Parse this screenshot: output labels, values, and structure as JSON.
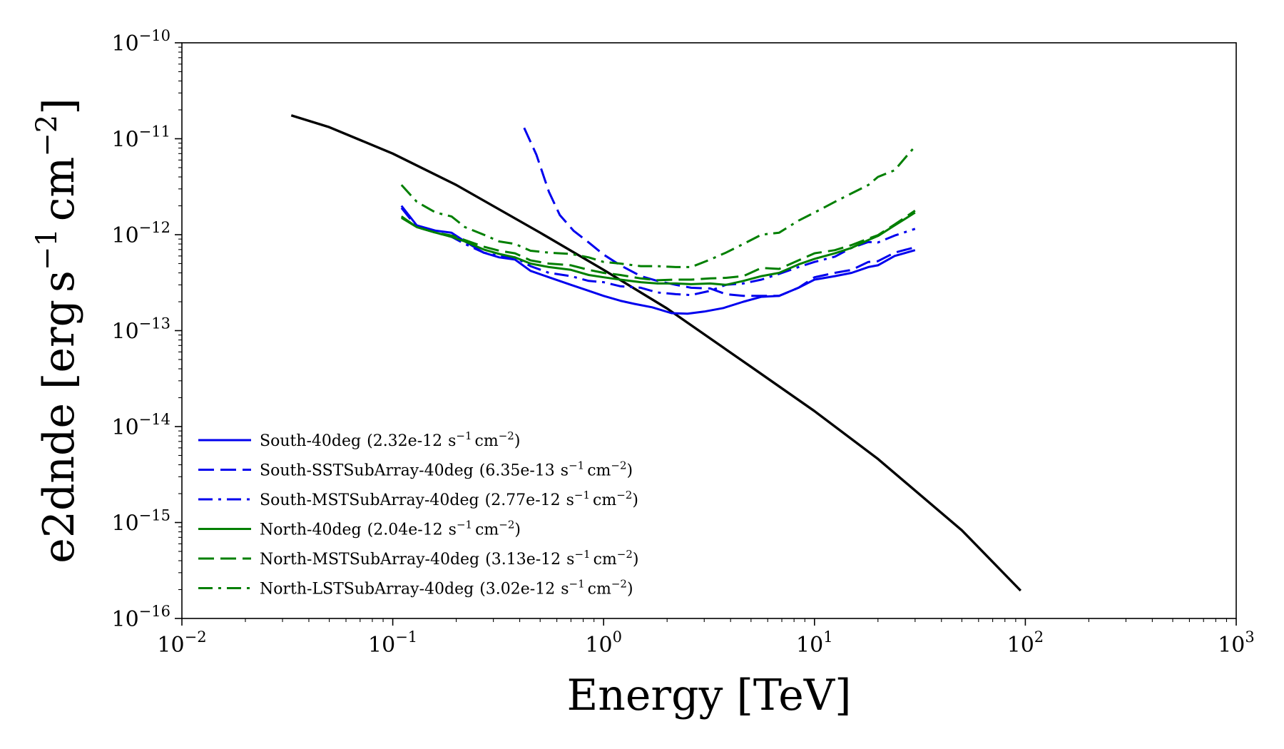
{
  "chart_data": {
    "type": "line",
    "xlabel": "Energy [TeV]",
    "ylabel": "e2dnde [erg s⁻¹ cm⁻²]",
    "ylabel_parts": {
      "main": "e2dnde [erg",
      "s": "s",
      "sexp": "−1",
      "cm": "cm",
      "cmexp": "−2",
      "close": "]"
    },
    "xlabel_text": "Energy [TeV]",
    "x_scale": "log",
    "y_scale": "log",
    "xlim": [
      0.01,
      1000
    ],
    "ylim": [
      1e-16,
      1e-10
    ],
    "x_ticks": [
      {
        "base": "10",
        "exp": "−2"
      },
      {
        "base": "10",
        "exp": "−1"
      },
      {
        "base": "10",
        "exp": "0"
      },
      {
        "base": "10",
        "exp": "1"
      },
      {
        "base": "10",
        "exp": "2"
      },
      {
        "base": "10",
        "exp": "3"
      }
    ],
    "y_ticks": [
      {
        "base": "10",
        "exp": "−16"
      },
      {
        "base": "10",
        "exp": "−15"
      },
      {
        "base": "10",
        "exp": "−14"
      },
      {
        "base": "10",
        "exp": "−13"
      },
      {
        "base": "10",
        "exp": "−12"
      },
      {
        "base": "10",
        "exp": "−11"
      },
      {
        "base": "10",
        "exp": "−10"
      }
    ],
    "legend_position": "lower-left",
    "grid": false,
    "legend_unit": {
      "s": "s",
      "sexp": "−1",
      "cm": "cm",
      "cmexp": "−2"
    },
    "reference_curve": {
      "color": "#000000",
      "style": "solid",
      "x": [
        0.033,
        0.05,
        0.1,
        0.2,
        0.5,
        1,
        2,
        5,
        10,
        20,
        50,
        95
      ],
      "y": [
        1.75e-11,
        1.32e-11,
        7e-12,
        3.3e-12,
        1.05e-12,
        4.3e-13,
        1.7e-13,
        4.2e-14,
        1.45e-14,
        4.6e-15,
        8.3e-16,
        1.95e-16
      ]
    },
    "series": [
      {
        "name": "South-40deg",
        "integral": "(2.32e-12",
        "color": "#0000ee",
        "style": "solid",
        "x": [
          0.11,
          0.13,
          0.16,
          0.19,
          0.22,
          0.27,
          0.32,
          0.38,
          0.45,
          0.55,
          0.7,
          0.85,
          1.0,
          1.2,
          1.4,
          1.7,
          2.1,
          2.5,
          3.0,
          3.7,
          4.6,
          5.6,
          6.8,
          8.4,
          10.0,
          12.5,
          15.0,
          18.0,
          20.0,
          24.0,
          30.0
        ],
        "y": [
          2e-12,
          1.25e-12,
          1.1e-12,
          1.05e-12,
          8.5e-13,
          6.5e-13,
          5.8e-13,
          5.5e-13,
          4.2e-13,
          3.6e-13,
          3e-13,
          2.6e-13,
          2.3e-13,
          2.05e-13,
          1.9e-13,
          1.75e-13,
          1.52e-13,
          1.5e-13,
          1.58e-13,
          1.72e-13,
          2e-13,
          2.25e-13,
          2.3e-13,
          2.8e-13,
          3.4e-13,
          3.7e-13,
          4e-13,
          4.6e-13,
          4.8e-13,
          6e-13,
          6.9e-13
        ]
      },
      {
        "name": "South-SSTSubArray-40deg",
        "integral": "(6.35e-13",
        "color": "#0000ee",
        "style": "dashed",
        "x": [
          0.42,
          0.48,
          0.55,
          0.62,
          0.72,
          0.85,
          1.0,
          1.2,
          1.5,
          1.8,
          2.2,
          2.6,
          3.2,
          3.8,
          4.6,
          5.6,
          6.8,
          8.4,
          10.0,
          12.5,
          15.0,
          18.0,
          20.0,
          24.0,
          30.0
        ],
        "y": [
          1.3e-11,
          6.8e-12,
          2.8e-12,
          1.6e-12,
          1.1e-12,
          8.3e-13,
          6.2e-13,
          4.8e-13,
          3.7e-13,
          3.3e-13,
          3e-13,
          2.8e-13,
          2.75e-13,
          2.4e-13,
          2.3e-13,
          2.3e-13,
          2.3e-13,
          2.8e-13,
          3.6e-13,
          4e-13,
          4.3e-13,
          5.2e-13,
          5.3e-13,
          6.5e-13,
          7.4e-13
        ]
      },
      {
        "name": "South-MSTSubArray-40deg",
        "integral": "(2.77e-12",
        "color": "#0000ee",
        "style": "dashdot",
        "x": [
          0.11,
          0.13,
          0.16,
          0.19,
          0.22,
          0.27,
          0.32,
          0.38,
          0.45,
          0.55,
          0.7,
          0.85,
          1.0,
          1.2,
          1.5,
          1.8,
          2.2,
          2.6,
          3.2,
          3.8,
          4.6,
          5.6,
          6.8,
          8.4,
          10.0,
          12.5,
          15.0,
          18.0,
          20.0,
          24.0,
          30.0
        ],
        "y": [
          1.9e-12,
          1.2e-12,
          1.05e-12,
          9.5e-13,
          8e-13,
          6.5e-13,
          6e-13,
          5.8e-13,
          4.7e-13,
          4e-13,
          3.7e-13,
          3.3e-13,
          3.2e-13,
          2.9e-13,
          2.8e-13,
          2.5e-13,
          2.4e-13,
          2.35e-13,
          2.6e-13,
          3e-13,
          3.1e-13,
          3.4e-13,
          3.9e-13,
          4.6e-13,
          5.2e-13,
          5.9e-13,
          7.3e-13,
          8.4e-13,
          8.3e-13,
          9.8e-13,
          1.15e-12
        ]
      },
      {
        "name": "North-40deg",
        "integral": "(2.04e-12",
        "color": "#007f00",
        "style": "solid",
        "x": [
          0.11,
          0.13,
          0.16,
          0.19,
          0.22,
          0.27,
          0.32,
          0.38,
          0.45,
          0.55,
          0.7,
          0.85,
          1.0,
          1.2,
          1.5,
          1.8,
          2.2,
          2.6,
          3.2,
          3.8,
          4.6,
          5.6,
          6.8,
          8.4,
          10.0,
          12.5,
          15.0,
          18.0,
          20.0,
          24.0,
          30.0
        ],
        "y": [
          1.5e-12,
          1.2e-12,
          1.05e-12,
          9.5e-13,
          8.5e-13,
          7e-13,
          6.3e-13,
          5.8e-13,
          5e-13,
          4.6e-13,
          4.3e-13,
          3.8e-13,
          3.6e-13,
          3.4e-13,
          3.2e-13,
          3.1e-13,
          3.1e-13,
          3.05e-13,
          3.1e-13,
          3e-13,
          3.3e-13,
          3.7e-13,
          4e-13,
          4.9e-13,
          5.6e-13,
          6.4e-13,
          7.3e-13,
          8.8e-13,
          9.7e-13,
          1.25e-12,
          1.7e-12
        ]
      },
      {
        "name": "North-MSTSubArray-40deg",
        "integral": "(3.13e-12",
        "color": "#007f00",
        "style": "dashed",
        "x": [
          0.11,
          0.13,
          0.16,
          0.19,
          0.22,
          0.27,
          0.32,
          0.38,
          0.45,
          0.55,
          0.7,
          0.85,
          1.0,
          1.2,
          1.5,
          1.8,
          2.2,
          2.6,
          3.2,
          3.8,
          4.6,
          5.6,
          6.8,
          8.4,
          10.0,
          12.5,
          15.0,
          18.0,
          20.0,
          24.0,
          30.0
        ],
        "y": [
          1.55e-12,
          1.2e-12,
          1.05e-12,
          9.8e-13,
          8.8e-13,
          7.5e-13,
          6.8e-13,
          6.4e-13,
          5.4e-13,
          5e-13,
          4.8e-13,
          4.3e-13,
          4e-13,
          3.8e-13,
          3.5e-13,
          3.35e-13,
          3.4e-13,
          3.4e-13,
          3.5e-13,
          3.55e-13,
          3.7e-13,
          4.5e-13,
          4.4e-13,
          5.4e-13,
          6.4e-13,
          6.9e-13,
          7.8e-13,
          9.1e-13,
          9.9e-13,
          1.28e-12,
          1.78e-12
        ]
      },
      {
        "name": "North-LSTSubArray-40deg",
        "integral": "(3.02e-12",
        "color": "#007f00",
        "style": "dashdot",
        "x": [
          0.11,
          0.13,
          0.16,
          0.19,
          0.22,
          0.27,
          0.32,
          0.38,
          0.45,
          0.55,
          0.7,
          0.85,
          1.0,
          1.2,
          1.5,
          1.8,
          2.2,
          2.6,
          3.2,
          3.8,
          4.6,
          5.6,
          6.8,
          8.4,
          10.0,
          12.5,
          15.0,
          18.0,
          20.0,
          24.0,
          28.0,
          30.0
        ],
        "y": [
          3.3e-12,
          2.2e-12,
          1.7e-12,
          1.55e-12,
          1.2e-12,
          1e-12,
          8.5e-13,
          8e-13,
          6.8e-13,
          6.5e-13,
          6.3e-13,
          5.8e-13,
          5.2e-13,
          5e-13,
          4.7e-13,
          4.7e-13,
          4.6e-13,
          4.6e-13,
          5.5e-13,
          6.5e-13,
          8e-13,
          1e-12,
          1.05e-12,
          1.4e-12,
          1.7e-12,
          2.2e-12,
          2.7e-12,
          3.3e-12,
          4e-12,
          4.7e-12,
          7e-12,
          8.3e-12
        ]
      }
    ]
  }
}
